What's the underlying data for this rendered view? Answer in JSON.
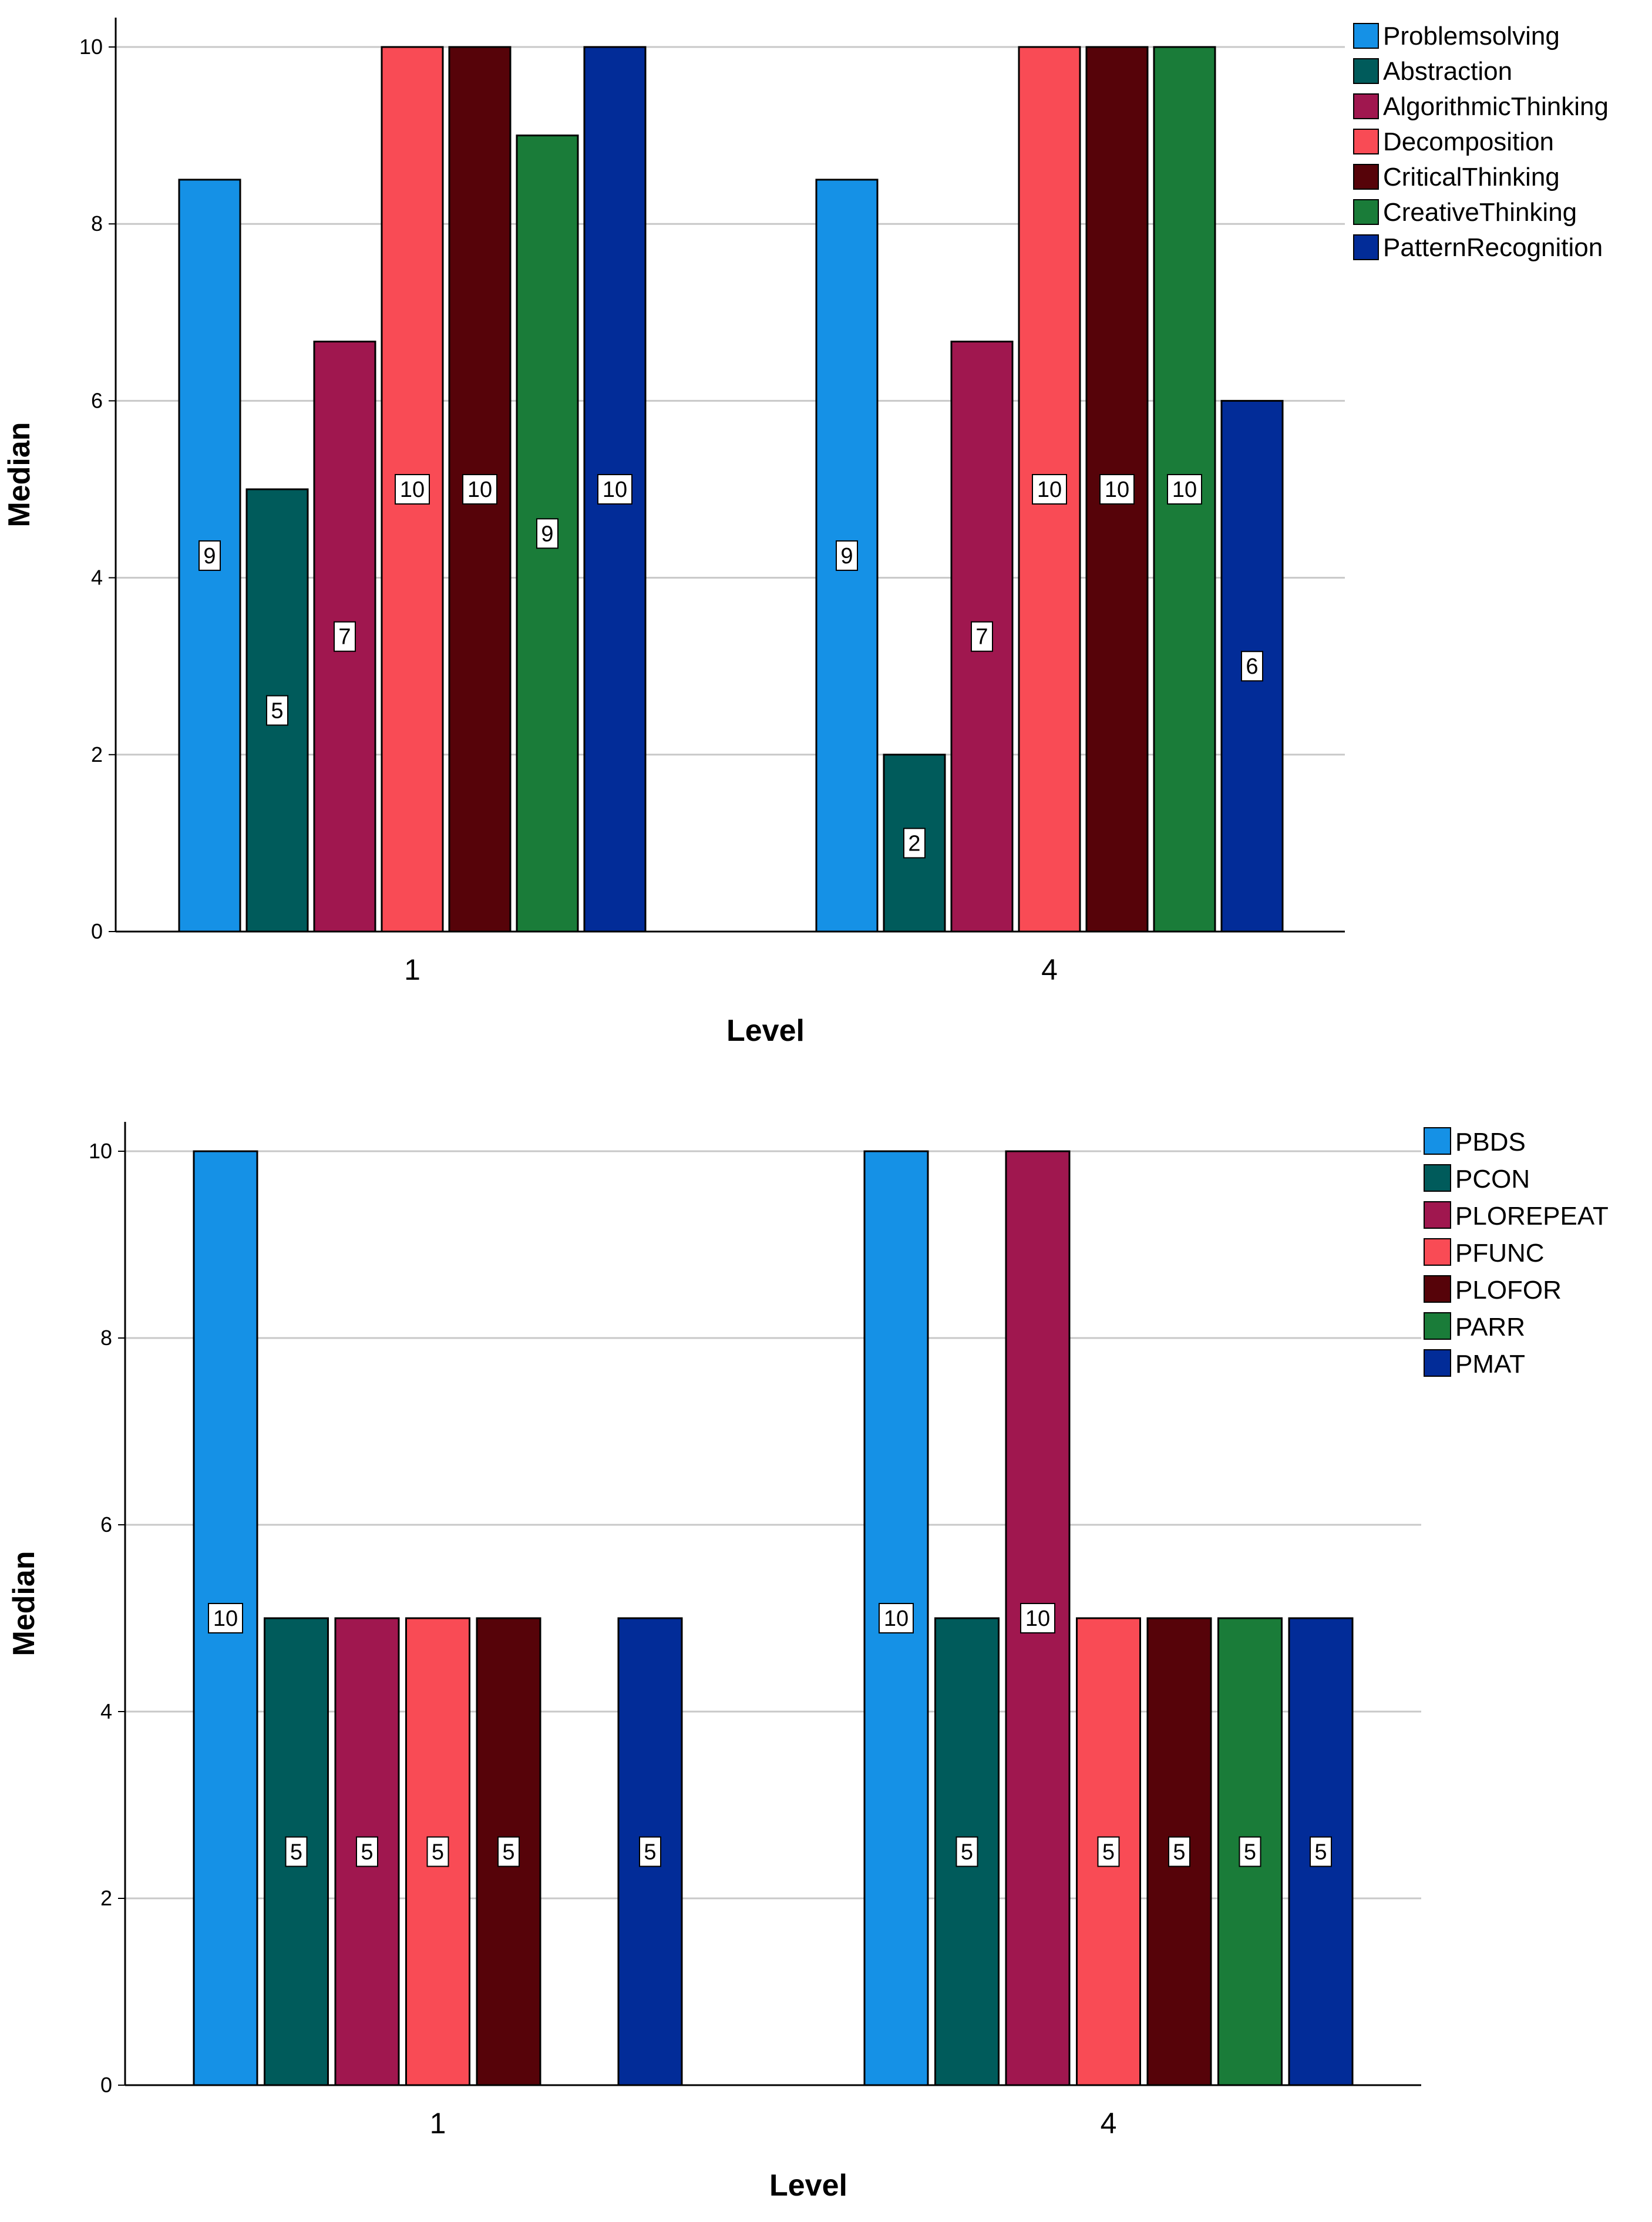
{
  "chart_data": [
    {
      "type": "bar",
      "xlabel": "Level",
      "ylabel": "Median",
      "categories": [
        "1",
        "4"
      ],
      "ylim": [
        0,
        10
      ],
      "yticks": [
        0,
        2,
        4,
        6,
        8,
        10
      ],
      "grid": true,
      "legend_position": "top-right",
      "series": [
        {
          "name": "Problemsolving",
          "values": [
            8.5,
            8.5
          ],
          "labels": [
            "9",
            "9"
          ],
          "color": "#1591e6"
        },
        {
          "name": "Abstraction",
          "values": [
            5,
            2
          ],
          "labels": [
            "5",
            "2"
          ],
          "color": "#005b5b"
        },
        {
          "name": "AlgorithmicThinking",
          "values": [
            6.67,
            6.67
          ],
          "labels": [
            "7",
            "7"
          ],
          "color": "#a0174f"
        },
        {
          "name": "Decomposition",
          "values": [
            10,
            10
          ],
          "labels": [
            "10",
            "10"
          ],
          "color": "#f94b55"
        },
        {
          "name": "CriticalThinking",
          "values": [
            10,
            10
          ],
          "labels": [
            "10",
            "10"
          ],
          "color": "#560309"
        },
        {
          "name": "CreativeThinking",
          "values": [
            9,
            10
          ],
          "labels": [
            "9",
            "10"
          ],
          "color": "#1a7c39"
        },
        {
          "name": "PatternRecognition",
          "values": [
            10,
            6
          ],
          "labels": [
            "10",
            "6"
          ],
          "color": "#022c98"
        }
      ]
    },
    {
      "type": "bar",
      "xlabel": "Level",
      "ylabel": "Median",
      "categories": [
        "1",
        "4"
      ],
      "ylim": [
        0,
        10
      ],
      "yticks": [
        0,
        2,
        4,
        6,
        8,
        10
      ],
      "grid": true,
      "legend_position": "top-right",
      "series": [
        {
          "name": "PBDS",
          "values": [
            10,
            10
          ],
          "labels": [
            "10",
            "10"
          ],
          "color": "#1591e6"
        },
        {
          "name": "PCON",
          "values": [
            5,
            5
          ],
          "labels": [
            "5",
            "5"
          ],
          "color": "#005b5b"
        },
        {
          "name": "PLOREPEAT",
          "values": [
            5,
            10
          ],
          "labels": [
            "5",
            "10"
          ],
          "color": "#a0174f"
        },
        {
          "name": "PFUNC",
          "values": [
            5,
            5
          ],
          "labels": [
            "5",
            "5"
          ],
          "color": "#f94b55"
        },
        {
          "name": "PLOFOR",
          "values": [
            5,
            5
          ],
          "labels": [
            "5",
            "5"
          ],
          "color": "#560309"
        },
        {
          "name": "PARR",
          "values": [
            0,
            5
          ],
          "labels": [
            "",
            "5"
          ],
          "color": "#1a7c39"
        },
        {
          "name": "PMAT",
          "values": [
            5,
            5
          ],
          "labels": [
            "5",
            "5"
          ],
          "color": "#022c98"
        }
      ]
    }
  ]
}
